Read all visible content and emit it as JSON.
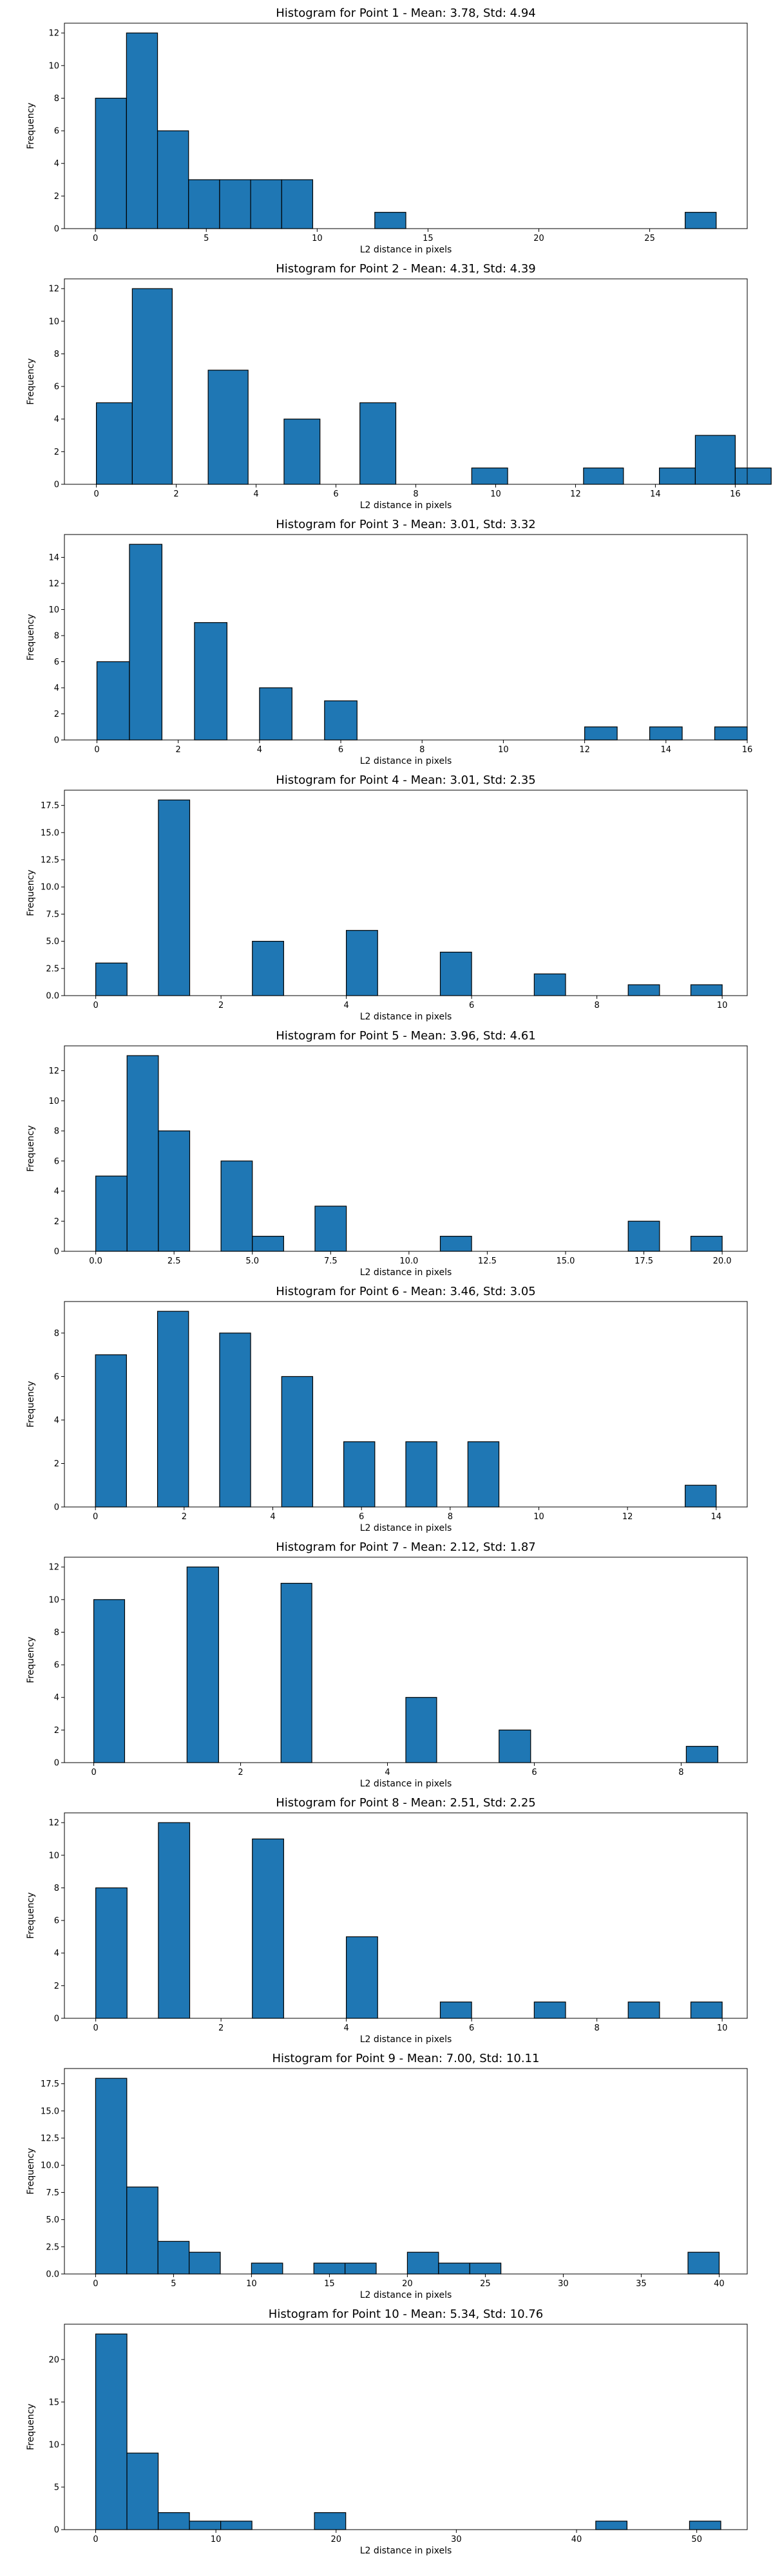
{
  "style": {
    "bar_color": "#1f77b4",
    "edge_color": "#000000"
  },
  "chart_data": [
    {
      "type": "bar",
      "title": "Histogram for Point 1 - Mean: 3.78, Std: 4.94",
      "xlabel": "L2 distance in pixels",
      "ylabel": "Frequency",
      "xlim": [
        -1.4,
        29.4
      ],
      "ylim": [
        0,
        12.6
      ],
      "xticks": [
        0,
        5,
        10,
        15,
        20,
        25
      ],
      "xtick_labels": [
        "0",
        "5",
        "10",
        "15",
        "20",
        "25"
      ],
      "yticks": [
        0,
        2,
        4,
        6,
        8,
        10,
        12
      ],
      "ytick_labels": [
        "0",
        "2",
        "4",
        "6",
        "8",
        "10",
        "12"
      ],
      "bins": [
        {
          "x0": 0,
          "x1": 1.4,
          "count": 8
        },
        {
          "x0": 1.4,
          "x1": 2.8,
          "count": 12
        },
        {
          "x0": 2.8,
          "x1": 4.2,
          "count": 6
        },
        {
          "x0": 4.2,
          "x1": 5.6,
          "count": 3
        },
        {
          "x0": 5.6,
          "x1": 7.0,
          "count": 3
        },
        {
          "x0": 7.0,
          "x1": 8.4,
          "count": 3
        },
        {
          "x0": 8.4,
          "x1": 9.8,
          "count": 3
        },
        {
          "x0": 12.6,
          "x1": 14.0,
          "count": 1
        },
        {
          "x0": 26.6,
          "x1": 28.0,
          "count": 1
        }
      ]
    },
    {
      "type": "bar",
      "title": "Histogram for Point 2 - Mean: 4.31, Std: 4.39",
      "xlabel": "L2 distance in pixels",
      "ylabel": "Frequency",
      "xlim": [
        -0.8,
        16.3
      ],
      "ylim": [
        0,
        12.6
      ],
      "xticks": [
        0,
        2,
        4,
        6,
        8,
        10,
        12,
        14,
        16
      ],
      "xtick_labels": [
        "0",
        "2",
        "4",
        "6",
        "8",
        "10",
        "12",
        "14",
        "16"
      ],
      "yticks": [
        0,
        2,
        4,
        6,
        8,
        10,
        12
      ],
      "ytick_labels": [
        "0",
        "2",
        "4",
        "6",
        "8",
        "10",
        "12"
      ],
      "bins": [
        {
          "x0": 0,
          "x1": 0.9,
          "count": 5
        },
        {
          "x0": 0.9,
          "x1": 1.9,
          "count": 12
        },
        {
          "x0": 2.8,
          "x1": 3.8,
          "count": 7
        },
        {
          "x0": 4.7,
          "x1": 5.6,
          "count": 4
        },
        {
          "x0": 6.6,
          "x1": 7.5,
          "count": 5
        },
        {
          "x0": 9.4,
          "x1": 10.3,
          "count": 1
        },
        {
          "x0": 12.2,
          "x1": 13.2,
          "count": 1
        },
        {
          "x0": 14.1,
          "x1": 15.0,
          "count": 1
        },
        {
          "x0": 15.0,
          "x1": 16.0,
          "count": 3
        },
        {
          "x0": 16.0,
          "x1": 16.9,
          "count": 1
        }
      ]
    },
    {
      "type": "bar",
      "title": "Histogram for Point 3 - Mean: 3.01, Std: 3.32",
      "xlabel": "L2 distance in pixels",
      "ylabel": "Frequency",
      "xlim": [
        -0.8,
        16.0
      ],
      "ylim": [
        0,
        15.75
      ],
      "xticks": [
        0,
        2,
        4,
        6,
        8,
        10,
        12,
        14,
        16
      ],
      "xtick_labels": [
        "0",
        "2",
        "4",
        "6",
        "8",
        "10",
        "12",
        "14",
        "16"
      ],
      "yticks": [
        0,
        2,
        4,
        6,
        8,
        10,
        12,
        14
      ],
      "ytick_labels": [
        "0",
        "2",
        "4",
        "6",
        "8",
        "10",
        "12",
        "14"
      ],
      "bins": [
        {
          "x0": 0,
          "x1": 0.8,
          "count": 6
        },
        {
          "x0": 0.8,
          "x1": 1.6,
          "count": 15
        },
        {
          "x0": 2.4,
          "x1": 3.2,
          "count": 9
        },
        {
          "x0": 4.0,
          "x1": 4.8,
          "count": 4
        },
        {
          "x0": 5.6,
          "x1": 6.4,
          "count": 3
        },
        {
          "x0": 12.0,
          "x1": 12.8,
          "count": 1
        },
        {
          "x0": 13.6,
          "x1": 14.4,
          "count": 1
        },
        {
          "x0": 15.2,
          "x1": 16.0,
          "count": 1
        }
      ]
    },
    {
      "type": "bar",
      "title": "Histogram for Point 4 - Mean: 3.01, Std: 2.35",
      "xlabel": "L2 distance in pixels",
      "ylabel": "Frequency",
      "xlim": [
        -0.5,
        10.4
      ],
      "ylim": [
        0,
        18.9
      ],
      "xticks": [
        0,
        2,
        4,
        6,
        8,
        10
      ],
      "xtick_labels": [
        "0",
        "2",
        "4",
        "6",
        "8",
        "10"
      ],
      "yticks": [
        0,
        2.5,
        5,
        7.5,
        10,
        12.5,
        15,
        17.5
      ],
      "ytick_labels": [
        "0.0",
        "2.5",
        "5.0",
        "7.5",
        "10.0",
        "12.5",
        "15.0",
        "17.5"
      ],
      "bins": [
        {
          "x0": 0,
          "x1": 0.5,
          "count": 3
        },
        {
          "x0": 1.0,
          "x1": 1.5,
          "count": 18
        },
        {
          "x0": 2.5,
          "x1": 3.0,
          "count": 5
        },
        {
          "x0": 4.0,
          "x1": 4.5,
          "count": 6
        },
        {
          "x0": 5.5,
          "x1": 6.0,
          "count": 4
        },
        {
          "x0": 7.0,
          "x1": 7.5,
          "count": 2
        },
        {
          "x0": 8.5,
          "x1": 9.0,
          "count": 1
        },
        {
          "x0": 9.5,
          "x1": 10.0,
          "count": 1
        }
      ]
    },
    {
      "type": "bar",
      "title": "Histogram for Point 5 - Mean: 3.96, Std: 4.61",
      "xlabel": "L2 distance in pixels",
      "ylabel": "Frequency",
      "xlim": [
        -1.0,
        20.8
      ],
      "ylim": [
        0,
        13.65
      ],
      "xticks": [
        0,
        2.5,
        5,
        7.5,
        10,
        12.5,
        15,
        17.5,
        20
      ],
      "xtick_labels": [
        "0.0",
        "2.5",
        "5.0",
        "7.5",
        "10.0",
        "12.5",
        "15.0",
        "17.5",
        "20.0"
      ],
      "yticks": [
        0,
        2,
        4,
        6,
        8,
        10,
        12
      ],
      "ytick_labels": [
        "0",
        "2",
        "4",
        "6",
        "8",
        "10",
        "12"
      ],
      "bins": [
        {
          "x0": 0,
          "x1": 1.0,
          "count": 5
        },
        {
          "x0": 1.0,
          "x1": 2.0,
          "count": 13
        },
        {
          "x0": 2.0,
          "x1": 3.0,
          "count": 8
        },
        {
          "x0": 4.0,
          "x1": 5.0,
          "count": 6
        },
        {
          "x0": 5.0,
          "x1": 6.0,
          "count": 1
        },
        {
          "x0": 7.0,
          "x1": 8.0,
          "count": 3
        },
        {
          "x0": 11.0,
          "x1": 12.0,
          "count": 1
        },
        {
          "x0": 17.0,
          "x1": 18.0,
          "count": 2
        },
        {
          "x0": 19.0,
          "x1": 20.0,
          "count": 1
        }
      ]
    },
    {
      "type": "bar",
      "title": "Histogram for Point 6 - Mean: 3.46, Std: 3.05",
      "xlabel": "L2 distance in pixels",
      "ylabel": "Frequency",
      "xlim": [
        -0.7,
        14.7
      ],
      "ylim": [
        0,
        9.45
      ],
      "xticks": [
        0,
        2,
        4,
        6,
        8,
        10,
        12,
        14
      ],
      "xtick_labels": [
        "0",
        "2",
        "4",
        "6",
        "8",
        "10",
        "12",
        "14"
      ],
      "yticks": [
        0,
        2,
        4,
        6,
        8
      ],
      "ytick_labels": [
        "0",
        "2",
        "4",
        "6",
        "8"
      ],
      "bins": [
        {
          "x0": 0,
          "x1": 0.7,
          "count": 7
        },
        {
          "x0": 1.4,
          "x1": 2.1,
          "count": 9
        },
        {
          "x0": 2.8,
          "x1": 3.5,
          "count": 8
        },
        {
          "x0": 4.2,
          "x1": 4.9,
          "count": 6
        },
        {
          "x0": 5.6,
          "x1": 6.3,
          "count": 3
        },
        {
          "x0": 7.0,
          "x1": 7.7,
          "count": 3
        },
        {
          "x0": 8.4,
          "x1": 9.1,
          "count": 3
        },
        {
          "x0": 13.3,
          "x1": 14.0,
          "count": 1
        }
      ]
    },
    {
      "type": "bar",
      "title": "Histogram for Point 7 - Mean: 2.12, Std: 1.87",
      "xlabel": "L2 distance in pixels",
      "ylabel": "Frequency",
      "xlim": [
        -0.4,
        8.9
      ],
      "ylim": [
        0,
        12.6
      ],
      "xticks": [
        0,
        2,
        4,
        6,
        8
      ],
      "xtick_labels": [
        "0",
        "2",
        "4",
        "6",
        "8"
      ],
      "yticks": [
        0,
        2,
        4,
        6,
        8,
        10,
        12
      ],
      "ytick_labels": [
        "0",
        "2",
        "4",
        "6",
        "8",
        "10",
        "12"
      ],
      "bins": [
        {
          "x0": 0,
          "x1": 0.42,
          "count": 10
        },
        {
          "x0": 1.27,
          "x1": 1.7,
          "count": 12
        },
        {
          "x0": 2.55,
          "x1": 2.97,
          "count": 11
        },
        {
          "x0": 4.25,
          "x1": 4.67,
          "count": 4
        },
        {
          "x0": 5.52,
          "x1": 5.95,
          "count": 2
        },
        {
          "x0": 8.07,
          "x1": 8.5,
          "count": 1
        }
      ]
    },
    {
      "type": "bar",
      "title": "Histogram for Point 8 - Mean: 2.51, Std: 2.25",
      "xlabel": "L2 distance in pixels",
      "ylabel": "Frequency",
      "xlim": [
        -0.5,
        10.4
      ],
      "ylim": [
        0,
        12.6
      ],
      "xticks": [
        0,
        2,
        4,
        6,
        8,
        10
      ],
      "xtick_labels": [
        "0",
        "2",
        "4",
        "6",
        "8",
        "10"
      ],
      "yticks": [
        0,
        2,
        4,
        6,
        8,
        10,
        12
      ],
      "ytick_labels": [
        "0",
        "2",
        "4",
        "6",
        "8",
        "10",
        "12"
      ],
      "bins": [
        {
          "x0": 0,
          "x1": 0.5,
          "count": 8
        },
        {
          "x0": 1.0,
          "x1": 1.5,
          "count": 12
        },
        {
          "x0": 2.5,
          "x1": 3.0,
          "count": 11
        },
        {
          "x0": 4.0,
          "x1": 4.5,
          "count": 5
        },
        {
          "x0": 5.5,
          "x1": 6.0,
          "count": 1
        },
        {
          "x0": 7.0,
          "x1": 7.5,
          "count": 1
        },
        {
          "x0": 8.5,
          "x1": 9.0,
          "count": 1
        },
        {
          "x0": 9.5,
          "x1": 10.0,
          "count": 1
        }
      ]
    },
    {
      "type": "bar",
      "title": "Histogram for Point 9 - Mean: 7.00, Std: 10.11",
      "xlabel": "L2 distance in pixels",
      "ylabel": "Frequency",
      "xlim": [
        -2.0,
        41.8
      ],
      "ylim": [
        0,
        18.9
      ],
      "xticks": [
        0,
        5,
        10,
        15,
        20,
        25,
        30,
        35,
        40
      ],
      "xtick_labels": [
        "0",
        "5",
        "10",
        "15",
        "20",
        "25",
        "30",
        "35",
        "40"
      ],
      "yticks": [
        0,
        2.5,
        5,
        7.5,
        10,
        12.5,
        15,
        17.5
      ],
      "ytick_labels": [
        "0.0",
        "2.5",
        "5.0",
        "7.5",
        "10.0",
        "12.5",
        "15.0",
        "17.5"
      ],
      "bins": [
        {
          "x0": 0,
          "x1": 2.0,
          "count": 18
        },
        {
          "x0": 2.0,
          "x1": 4.0,
          "count": 8
        },
        {
          "x0": 4.0,
          "x1": 6.0,
          "count": 3
        },
        {
          "x0": 6.0,
          "x1": 8.0,
          "count": 2
        },
        {
          "x0": 10.0,
          "x1": 12.0,
          "count": 1
        },
        {
          "x0": 14.0,
          "x1": 16.0,
          "count": 1
        },
        {
          "x0": 16.0,
          "x1": 18.0,
          "count": 1
        },
        {
          "x0": 20.0,
          "x1": 22.0,
          "count": 2
        },
        {
          "x0": 22.0,
          "x1": 24.0,
          "count": 1
        },
        {
          "x0": 24.0,
          "x1": 26.0,
          "count": 1
        },
        {
          "x0": 38.0,
          "x1": 40.0,
          "count": 2
        }
      ]
    },
    {
      "type": "bar",
      "title": "Histogram for Point 10 - Mean: 5.34, Std: 10.76",
      "xlabel": "L2 distance in pixels",
      "ylabel": "Frequency",
      "xlim": [
        -2.6,
        54.2
      ],
      "ylim": [
        0,
        24.15
      ],
      "xticks": [
        0,
        10,
        20,
        30,
        40,
        50
      ],
      "xtick_labels": [
        "0",
        "10",
        "20",
        "30",
        "40",
        "50"
      ],
      "yticks": [
        0,
        5,
        10,
        15,
        20
      ],
      "ytick_labels": [
        "0",
        "5",
        "10",
        "15",
        "20"
      ],
      "bins": [
        {
          "x0": 0,
          "x1": 2.6,
          "count": 23
        },
        {
          "x0": 2.6,
          "x1": 5.2,
          "count": 9
        },
        {
          "x0": 5.2,
          "x1": 7.8,
          "count": 2
        },
        {
          "x0": 7.8,
          "x1": 10.4,
          "count": 1
        },
        {
          "x0": 10.4,
          "x1": 13.0,
          "count": 1
        },
        {
          "x0": 18.2,
          "x1": 20.8,
          "count": 2
        },
        {
          "x0": 41.6,
          "x1": 44.2,
          "count": 1
        },
        {
          "x0": 49.4,
          "x1": 52.0,
          "count": 1
        }
      ]
    }
  ]
}
